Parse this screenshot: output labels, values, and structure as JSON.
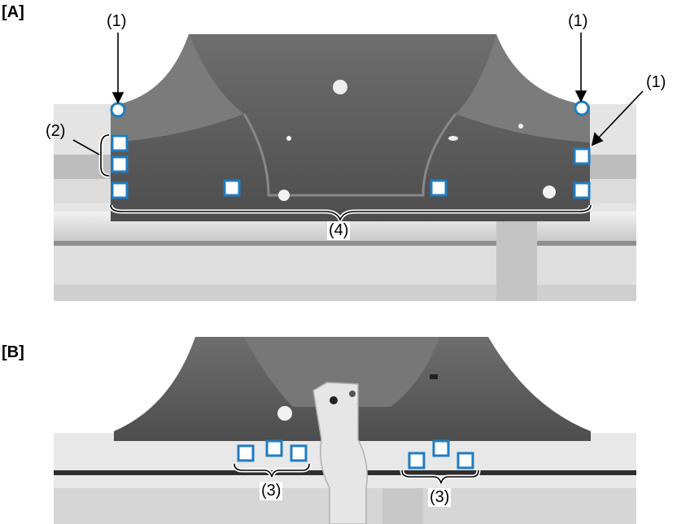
{
  "panels": {
    "a": {
      "label": "[A]"
    },
    "b": {
      "label": "[B]"
    }
  },
  "callouts": {
    "a_1_left": "(1)",
    "a_1_right_top": "(1)",
    "a_1_right": "(1)",
    "a_2": "(2)",
    "a_4": "(4)",
    "b_3_left": "(3)",
    "b_3_right": "(3)"
  },
  "colors": {
    "marker_blue": "#1f7dc1",
    "panel_dark": "#5a5a5a",
    "panel_light": "#d9d9d9"
  }
}
